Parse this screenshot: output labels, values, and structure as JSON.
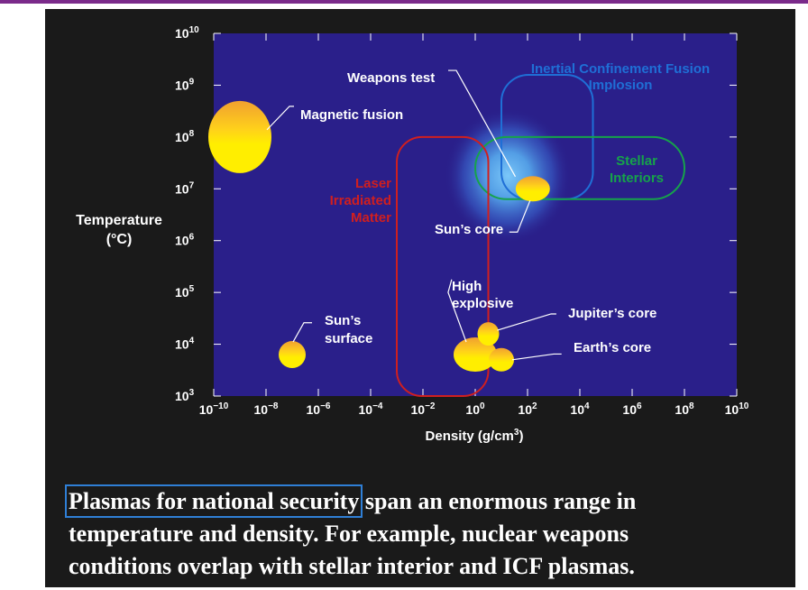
{
  "colors": {
    "plot_background": "#2a1f8a",
    "panel_background": "#1a1a1a",
    "plasma_yellow": "#ffee00",
    "plasma_orange": "#f0a030",
    "icf_outline": "#1f6fd6",
    "stellar_outline": "#16a34a",
    "laser_outline": "#d01f1f",
    "glow_blue": "#5ab4f5"
  },
  "chart_data": {
    "type": "scatter",
    "xlabel": "Density (g/cm3)",
    "ylabel": "Temperature (°C)",
    "xscale": "log",
    "yscale": "log",
    "x_exponent_range": [
      -10,
      10
    ],
    "y_exponent_range": [
      3,
      10
    ],
    "x_ticks": [
      "10−10",
      "10−8",
      "10−6",
      "10−4",
      "10−2",
      "100",
      "102",
      "104",
      "106",
      "108",
      "1010"
    ],
    "y_ticks": [
      "103",
      "104",
      "105",
      "106",
      "107",
      "108",
      "109",
      "1010"
    ],
    "points": [
      {
        "label": "Magnetic fusion",
        "density_exp": -9.0,
        "temperature_exp": 8.0
      },
      {
        "label": "Sun’s surface",
        "density_exp": -7.0,
        "temperature_exp": 3.8
      },
      {
        "label": "Sun’s core",
        "density_exp": 2.2,
        "temperature_exp": 7.0
      },
      {
        "label": "High explosive",
        "density_exp": 0.0,
        "temperature_exp": 3.8
      },
      {
        "label": "Jupiter’s core",
        "density_exp": 0.5,
        "temperature_exp": 4.2
      },
      {
        "label": "Earth’s core",
        "density_exp": 1.0,
        "temperature_exp": 3.7
      }
    ],
    "regions": [
      {
        "label": "Weapons test",
        "density_exp_range": [
          -0.5,
          3.0
        ],
        "temperature_exp_range": [
          6.5,
          8.0
        ]
      },
      {
        "label": "Inertial Confinement Fusion Implosion",
        "density_exp_range": [
          1.0,
          4.5
        ],
        "temperature_exp_range": [
          6.8,
          9.2
        ]
      },
      {
        "label": "Stellar Interiors",
        "density_exp_range": [
          0.0,
          8.0
        ],
        "temperature_exp_range": [
          6.8,
          8.0
        ]
      },
      {
        "label": "Laser Irradiated Matter",
        "density_exp_range": [
          -3.0,
          0.5
        ],
        "temperature_exp_range": [
          3.0,
          8.0
        ]
      }
    ]
  },
  "labels": {
    "weapons_test": "Weapons test",
    "icf_line1": "Inertial Confinement Fusion",
    "icf_line2": "Implosion",
    "stellar_line1": "Stellar",
    "stellar_line2": "Interiors",
    "laser_line1": "Laser",
    "laser_line2": "Irradiated",
    "laser_line3": "Matter",
    "magnetic_fusion": "Magnetic fusion",
    "suns_core": "Sun’s core",
    "suns_surface_line1": "Sun’s",
    "suns_surface_line2": "surface",
    "high_line1": "High",
    "high_line2": "explosive",
    "jupiters_core": "Jupiter’s core",
    "earths_core": "Earth’s core"
  },
  "axis": {
    "ylabel_line1": "Temperature",
    "ylabel_line2": "(°C)",
    "xlabel_main": "Density (g/cm",
    "xlabel_sup": "3",
    "xlabel_end": ")"
  },
  "caption": {
    "highlight": "Plasmas for national security",
    "rest_line1": " span an enormous range in",
    "line2": "temperature and density. For example, nuclear weapons",
    "line3": "conditions overlap with stellar interior and ICF plasmas."
  }
}
